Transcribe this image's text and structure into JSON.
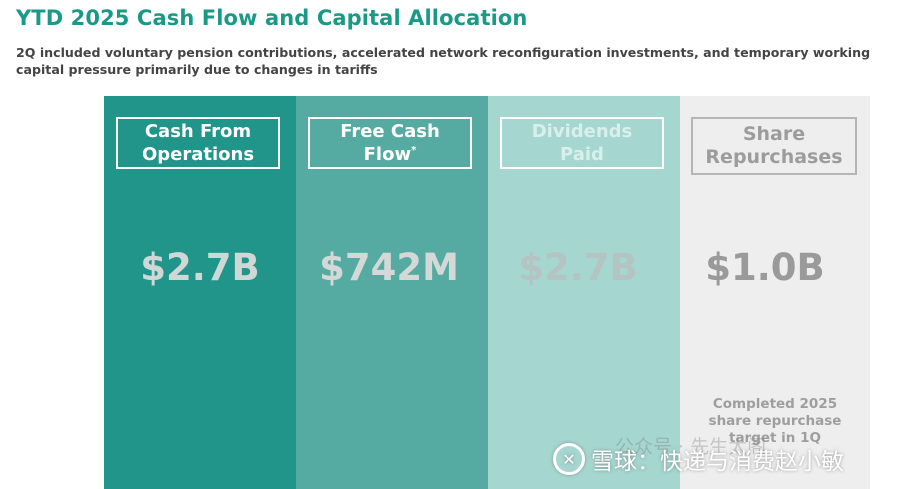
{
  "header": {
    "title": "YTD 2025 Cash Flow and Capital Allocation",
    "subtitle": "2Q included voluntary pension contributions, accelerated network reconfiguration investments, and temporary working capital pressure primarily due to changes in tariffs"
  },
  "columns": [
    {
      "label": "Cash From\nOperations",
      "value": "$2.7B",
      "color": "#22958a"
    },
    {
      "label": "Free Cash\nFlow",
      "superscript": "*",
      "value": "$742M",
      "color": "#55aba1"
    },
    {
      "label": "Dividends\nPaid",
      "value": "$2.7B",
      "color": "#a6d6d0"
    },
    {
      "label": "Share\nRepurchases",
      "value": "$1.0B",
      "color": "#eeeeee",
      "note": "Completed 2025\nshare repurchase\ntarget in 1Q"
    }
  ],
  "watermark": {
    "text": "雪球：快递与消费赵小敏",
    "faint_text": "公众号 · 先生太阁"
  }
}
